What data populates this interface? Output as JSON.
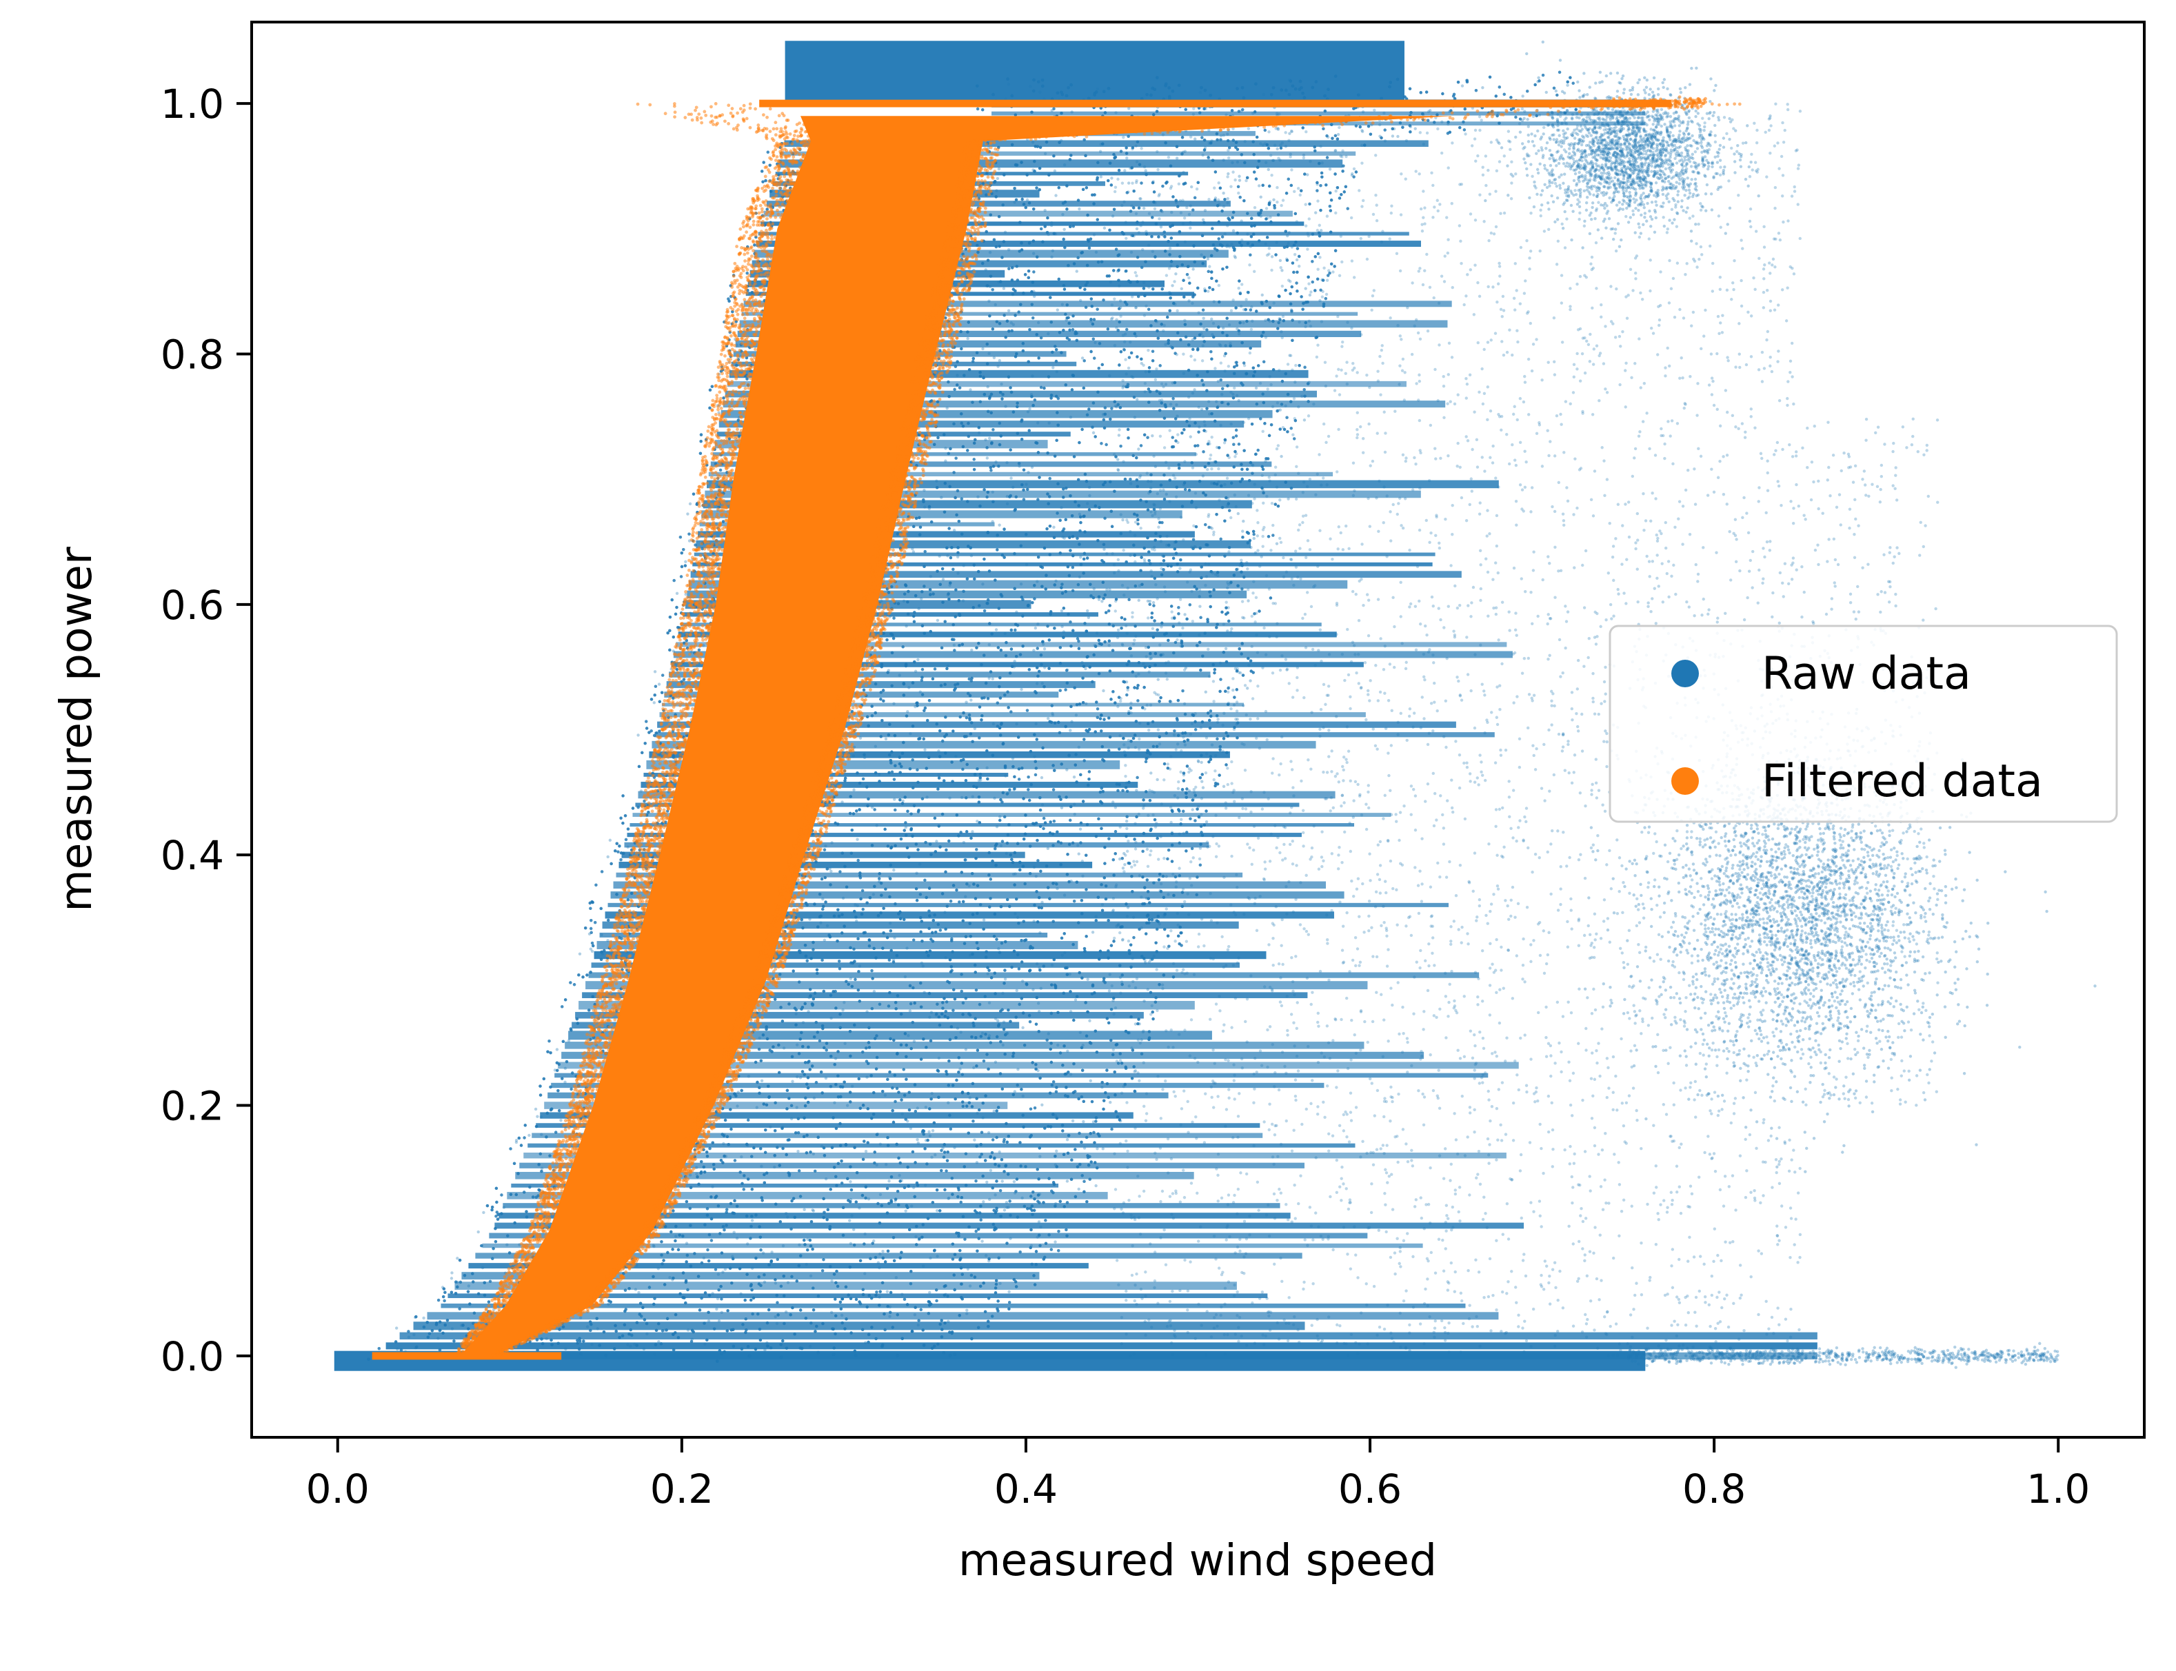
{
  "chart_data": {
    "type": "scatter",
    "title": "",
    "xlabel": "measured wind speed",
    "ylabel": "measured power",
    "xlim": [
      -0.05,
      1.05
    ],
    "ylim": [
      -0.065,
      1.065
    ],
    "x_ticks": [
      0.0,
      0.2,
      0.4,
      0.6,
      0.8,
      1.0
    ],
    "x_tick_labels": [
      "0.0",
      "0.2",
      "0.4",
      "0.6",
      "0.8",
      "1.0"
    ],
    "y_ticks": [
      0.0,
      0.2,
      0.4,
      0.6,
      0.8,
      1.0
    ],
    "y_tick_labels": [
      "0.0",
      "0.2",
      "0.4",
      "0.6",
      "0.8",
      "1.0"
    ],
    "grid": false,
    "legend_position": "center-right",
    "series": [
      {
        "name": "Raw data",
        "color": "#1f77b4",
        "description_points": [
          {
            "x": 0.0,
            "y": 0.0
          },
          {
            "x": 0.1,
            "y": 0.0
          },
          {
            "x": 0.3,
            "y": 0.0
          },
          {
            "x": 0.5,
            "y": 0.0
          },
          {
            "x": 0.7,
            "y": 0.0
          },
          {
            "x": 0.8,
            "y": 0.0
          },
          {
            "x": 0.9,
            "y": 0.0
          },
          {
            "x": 1.0,
            "y": 0.0
          },
          {
            "x": 0.15,
            "y": 0.1
          },
          {
            "x": 0.35,
            "y": 0.1
          },
          {
            "x": 0.55,
            "y": 0.1
          },
          {
            "x": 0.68,
            "y": 0.1
          },
          {
            "x": 0.2,
            "y": 0.3
          },
          {
            "x": 0.45,
            "y": 0.3
          },
          {
            "x": 0.65,
            "y": 0.3
          },
          {
            "x": 0.85,
            "y": 0.35
          },
          {
            "x": 0.24,
            "y": 0.5
          },
          {
            "x": 0.5,
            "y": 0.5
          },
          {
            "x": 0.7,
            "y": 0.5
          },
          {
            "x": 0.8,
            "y": 0.5
          },
          {
            "x": 0.28,
            "y": 0.7
          },
          {
            "x": 0.5,
            "y": 0.7
          },
          {
            "x": 0.63,
            "y": 0.7
          },
          {
            "x": 0.82,
            "y": 0.65
          },
          {
            "x": 0.32,
            "y": 0.9
          },
          {
            "x": 0.5,
            "y": 0.9
          },
          {
            "x": 0.68,
            "y": 0.9
          },
          {
            "x": 0.75,
            "y": 0.95
          },
          {
            "x": 0.3,
            "y": 1.0
          },
          {
            "x": 0.5,
            "y": 1.0
          },
          {
            "x": 0.65,
            "y": 1.0
          },
          {
            "x": 0.75,
            "y": 1.0
          },
          {
            "x": 0.3,
            "y": 1.05
          },
          {
            "x": 0.5,
            "y": 1.05
          },
          {
            "x": 0.6,
            "y": 1.05
          }
        ]
      },
      {
        "name": "Filtered data",
        "color": "#ff7f0e",
        "power_curve": [
          {
            "wind": 0.02,
            "power": 0.0,
            "spread": 0.004
          },
          {
            "wind": 0.08,
            "power": 0.0,
            "spread": 0.01
          },
          {
            "wind": 0.12,
            "power": 0.04,
            "spread": 0.025
          },
          {
            "wind": 0.15,
            "power": 0.1,
            "spread": 0.03
          },
          {
            "wind": 0.18,
            "power": 0.2,
            "spread": 0.035
          },
          {
            "wind": 0.205,
            "power": 0.3,
            "spread": 0.04
          },
          {
            "wind": 0.225,
            "power": 0.4,
            "spread": 0.042
          },
          {
            "wind": 0.245,
            "power": 0.5,
            "spread": 0.045
          },
          {
            "wind": 0.262,
            "power": 0.6,
            "spread": 0.047
          },
          {
            "wind": 0.275,
            "power": 0.7,
            "spread": 0.05
          },
          {
            "wind": 0.29,
            "power": 0.8,
            "spread": 0.052
          },
          {
            "wind": 0.305,
            "power": 0.9,
            "spread": 0.055
          },
          {
            "wind": 0.32,
            "power": 0.97,
            "spread": 0.05
          },
          {
            "wind": 0.5,
            "power": 1.0,
            "spread": 0.26
          },
          {
            "wind": 0.78,
            "power": 1.0,
            "spread": 0.0
          }
        ]
      }
    ]
  }
}
